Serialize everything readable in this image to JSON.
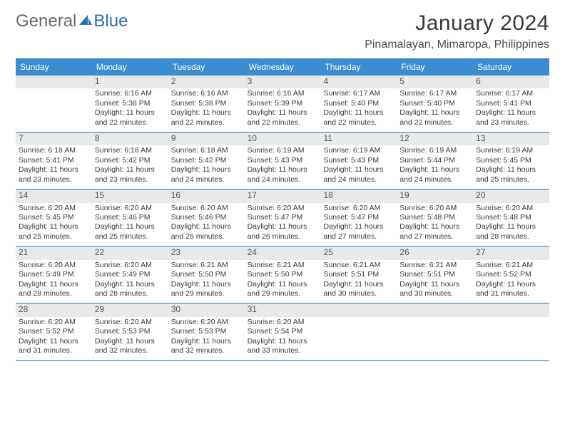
{
  "logo": {
    "part1": "General",
    "part2": "Blue"
  },
  "title": "January 2024",
  "location": "Pinamalayan, Mimaropa, Philippines",
  "colors": {
    "header_bg": "#3a8dd0",
    "border": "#2d6fb5",
    "daynum_bg": "#e9e9e9",
    "text": "#3a3a3a",
    "logo_gray": "#6a6a6a",
    "logo_blue": "#2d6fb5"
  },
  "day_names": [
    "Sunday",
    "Monday",
    "Tuesday",
    "Wednesday",
    "Thursday",
    "Friday",
    "Saturday"
  ],
  "weeks": [
    [
      {
        "empty": true
      },
      {
        "num": "1",
        "sunrise": "Sunrise: 6:16 AM",
        "sunset": "Sunset: 5:38 PM",
        "d1": "Daylight: 11 hours",
        "d2": "and 22 minutes."
      },
      {
        "num": "2",
        "sunrise": "Sunrise: 6:16 AM",
        "sunset": "Sunset: 5:38 PM",
        "d1": "Daylight: 11 hours",
        "d2": "and 22 minutes."
      },
      {
        "num": "3",
        "sunrise": "Sunrise: 6:16 AM",
        "sunset": "Sunset: 5:39 PM",
        "d1": "Daylight: 11 hours",
        "d2": "and 22 minutes."
      },
      {
        "num": "4",
        "sunrise": "Sunrise: 6:17 AM",
        "sunset": "Sunset: 5:40 PM",
        "d1": "Daylight: 11 hours",
        "d2": "and 22 minutes."
      },
      {
        "num": "5",
        "sunrise": "Sunrise: 6:17 AM",
        "sunset": "Sunset: 5:40 PM",
        "d1": "Daylight: 11 hours",
        "d2": "and 22 minutes."
      },
      {
        "num": "6",
        "sunrise": "Sunrise: 6:17 AM",
        "sunset": "Sunset: 5:41 PM",
        "d1": "Daylight: 11 hours",
        "d2": "and 23 minutes."
      }
    ],
    [
      {
        "num": "7",
        "sunrise": "Sunrise: 6:18 AM",
        "sunset": "Sunset: 5:41 PM",
        "d1": "Daylight: 11 hours",
        "d2": "and 23 minutes."
      },
      {
        "num": "8",
        "sunrise": "Sunrise: 6:18 AM",
        "sunset": "Sunset: 5:42 PM",
        "d1": "Daylight: 11 hours",
        "d2": "and 23 minutes."
      },
      {
        "num": "9",
        "sunrise": "Sunrise: 6:18 AM",
        "sunset": "Sunset: 5:42 PM",
        "d1": "Daylight: 11 hours",
        "d2": "and 24 minutes."
      },
      {
        "num": "10",
        "sunrise": "Sunrise: 6:19 AM",
        "sunset": "Sunset: 5:43 PM",
        "d1": "Daylight: 11 hours",
        "d2": "and 24 minutes."
      },
      {
        "num": "11",
        "sunrise": "Sunrise: 6:19 AM",
        "sunset": "Sunset: 5:43 PM",
        "d1": "Daylight: 11 hours",
        "d2": "and 24 minutes."
      },
      {
        "num": "12",
        "sunrise": "Sunrise: 6:19 AM",
        "sunset": "Sunset: 5:44 PM",
        "d1": "Daylight: 11 hours",
        "d2": "and 24 minutes."
      },
      {
        "num": "13",
        "sunrise": "Sunrise: 6:19 AM",
        "sunset": "Sunset: 5:45 PM",
        "d1": "Daylight: 11 hours",
        "d2": "and 25 minutes."
      }
    ],
    [
      {
        "num": "14",
        "sunrise": "Sunrise: 6:20 AM",
        "sunset": "Sunset: 5:45 PM",
        "d1": "Daylight: 11 hours",
        "d2": "and 25 minutes."
      },
      {
        "num": "15",
        "sunrise": "Sunrise: 6:20 AM",
        "sunset": "Sunset: 5:46 PM",
        "d1": "Daylight: 11 hours",
        "d2": "and 25 minutes."
      },
      {
        "num": "16",
        "sunrise": "Sunrise: 6:20 AM",
        "sunset": "Sunset: 5:46 PM",
        "d1": "Daylight: 11 hours",
        "d2": "and 26 minutes."
      },
      {
        "num": "17",
        "sunrise": "Sunrise: 6:20 AM",
        "sunset": "Sunset: 5:47 PM",
        "d1": "Daylight: 11 hours",
        "d2": "and 26 minutes."
      },
      {
        "num": "18",
        "sunrise": "Sunrise: 6:20 AM",
        "sunset": "Sunset: 5:47 PM",
        "d1": "Daylight: 11 hours",
        "d2": "and 27 minutes."
      },
      {
        "num": "19",
        "sunrise": "Sunrise: 6:20 AM",
        "sunset": "Sunset: 5:48 PM",
        "d1": "Daylight: 11 hours",
        "d2": "and 27 minutes."
      },
      {
        "num": "20",
        "sunrise": "Sunrise: 6:20 AM",
        "sunset": "Sunset: 5:48 PM",
        "d1": "Daylight: 11 hours",
        "d2": "and 28 minutes."
      }
    ],
    [
      {
        "num": "21",
        "sunrise": "Sunrise: 6:20 AM",
        "sunset": "Sunset: 5:49 PM",
        "d1": "Daylight: 11 hours",
        "d2": "and 28 minutes."
      },
      {
        "num": "22",
        "sunrise": "Sunrise: 6:20 AM",
        "sunset": "Sunset: 5:49 PM",
        "d1": "Daylight: 11 hours",
        "d2": "and 28 minutes."
      },
      {
        "num": "23",
        "sunrise": "Sunrise: 6:21 AM",
        "sunset": "Sunset: 5:50 PM",
        "d1": "Daylight: 11 hours",
        "d2": "and 29 minutes."
      },
      {
        "num": "24",
        "sunrise": "Sunrise: 6:21 AM",
        "sunset": "Sunset: 5:50 PM",
        "d1": "Daylight: 11 hours",
        "d2": "and 29 minutes."
      },
      {
        "num": "25",
        "sunrise": "Sunrise: 6:21 AM",
        "sunset": "Sunset: 5:51 PM",
        "d1": "Daylight: 11 hours",
        "d2": "and 30 minutes."
      },
      {
        "num": "26",
        "sunrise": "Sunrise: 6:21 AM",
        "sunset": "Sunset: 5:51 PM",
        "d1": "Daylight: 11 hours",
        "d2": "and 30 minutes."
      },
      {
        "num": "27",
        "sunrise": "Sunrise: 6:21 AM",
        "sunset": "Sunset: 5:52 PM",
        "d1": "Daylight: 11 hours",
        "d2": "and 31 minutes."
      }
    ],
    [
      {
        "num": "28",
        "sunrise": "Sunrise: 6:20 AM",
        "sunset": "Sunset: 5:52 PM",
        "d1": "Daylight: 11 hours",
        "d2": "and 31 minutes."
      },
      {
        "num": "29",
        "sunrise": "Sunrise: 6:20 AM",
        "sunset": "Sunset: 5:53 PM",
        "d1": "Daylight: 11 hours",
        "d2": "and 32 minutes."
      },
      {
        "num": "30",
        "sunrise": "Sunrise: 6:20 AM",
        "sunset": "Sunset: 5:53 PM",
        "d1": "Daylight: 11 hours",
        "d2": "and 32 minutes."
      },
      {
        "num": "31",
        "sunrise": "Sunrise: 6:20 AM",
        "sunset": "Sunset: 5:54 PM",
        "d1": "Daylight: 11 hours",
        "d2": "and 33 minutes."
      },
      {
        "empty": true
      },
      {
        "empty": true
      },
      {
        "empty": true
      }
    ]
  ]
}
